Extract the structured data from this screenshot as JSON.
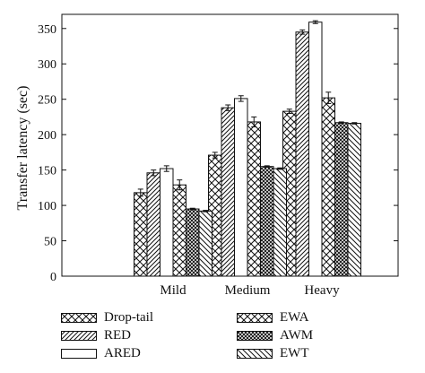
{
  "chart_data": {
    "type": "bar",
    "ylabel": "Transfer latency (sec)",
    "xlabel": "",
    "ylim": [
      0,
      370
    ],
    "yticks": [
      0,
      50,
      100,
      150,
      200,
      250,
      300,
      350
    ],
    "grid": false,
    "legend_position": "bottom",
    "categories": [
      "Mild",
      "Medium",
      "Heavy"
    ],
    "series": [
      {
        "name": "Drop-tail",
        "pattern": "crosshatch",
        "values": [
          118,
          171,
          233
        ],
        "errors": [
          5,
          4,
          3
        ]
      },
      {
        "name": "RED",
        "pattern": "diagonal",
        "values": [
          146,
          238,
          345
        ],
        "errors": [
          4,
          4,
          3
        ]
      },
      {
        "name": "ARED",
        "pattern": "blank",
        "values": [
          152,
          251,
          359
        ],
        "errors": [
          4,
          4,
          2
        ]
      },
      {
        "name": "EWA",
        "pattern": "crosshatch",
        "values": [
          129,
          218,
          252
        ],
        "errors": [
          7,
          7,
          8
        ]
      },
      {
        "name": "AWM",
        "pattern": "dense-crosshatch",
        "values": [
          95,
          155,
          217
        ],
        "errors": [
          1,
          1,
          1
        ]
      },
      {
        "name": "EWT",
        "pattern": "backdiagonal",
        "values": [
          92,
          152,
          216
        ],
        "errors": [
          1,
          1,
          1
        ]
      }
    ]
  }
}
